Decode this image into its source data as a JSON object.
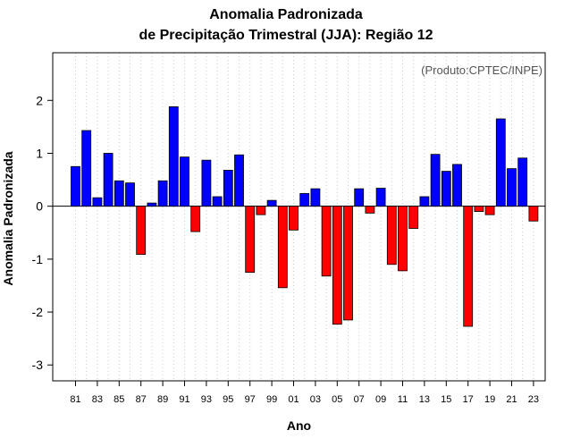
{
  "chart_data": {
    "type": "bar",
    "title_lines": [
      "Anomalia Padronizada",
      "de Precipitação Trimestral (JJA): Região 12"
    ],
    "xlabel": "Ano",
    "ylabel": "Anomalia Padronizada",
    "annotation": "(Produto:CPTEC/INPE)",
    "ylim": [
      -3.3,
      2.9
    ],
    "y_ticks": [
      -3,
      -2,
      -1,
      0,
      1,
      2
    ],
    "x_tick_labels": [
      "81",
      "83",
      "85",
      "87",
      "89",
      "91",
      "93",
      "95",
      "97",
      "99",
      "01",
      "03",
      "05",
      "07",
      "09",
      "11",
      "13",
      "15",
      "17",
      "19",
      "21",
      "23"
    ],
    "grid": true,
    "positive_color": "#0000ff",
    "negative_color": "#ff0000",
    "categories": [
      "1981",
      "1982",
      "1983",
      "1984",
      "1985",
      "1986",
      "1987",
      "1988",
      "1989",
      "1990",
      "1991",
      "1992",
      "1993",
      "1994",
      "1995",
      "1996",
      "1997",
      "1998",
      "1999",
      "2000",
      "2001",
      "2002",
      "2003",
      "2004",
      "2005",
      "2006",
      "2007",
      "2008",
      "2009",
      "2010",
      "2011",
      "2012",
      "2013",
      "2014",
      "2015",
      "2016",
      "2017",
      "2018",
      "2019",
      "2020",
      "2021",
      "2022",
      "2023"
    ],
    "values": [
      0.75,
      1.43,
      0.16,
      1.0,
      0.48,
      0.44,
      -0.91,
      0.06,
      0.48,
      1.88,
      0.93,
      -0.48,
      0.87,
      0.18,
      0.68,
      0.97,
      -1.25,
      -0.16,
      0.11,
      -1.54,
      -0.45,
      0.24,
      0.33,
      -1.32,
      -2.23,
      -2.15,
      0.33,
      -0.13,
      0.34,
      -1.1,
      -1.22,
      -0.42,
      0.18,
      0.98,
      0.66,
      0.79,
      -2.27,
      -0.1,
      -0.16,
      1.65,
      0.71,
      0.91,
      -0.28
    ]
  }
}
